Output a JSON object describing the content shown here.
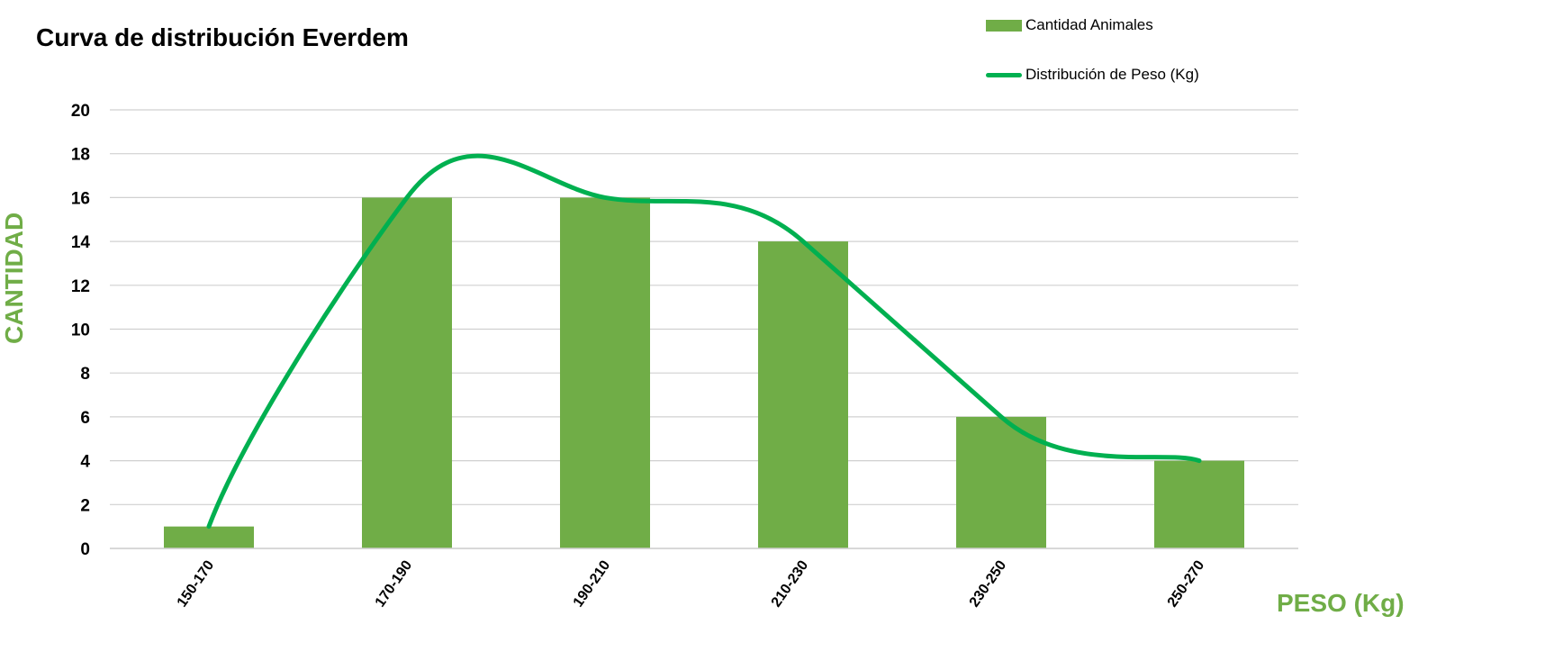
{
  "chart_data": {
    "type": "bar",
    "title": "Curva de distribución Everdem",
    "xlabel": "PESO (Kg)",
    "ylabel": "CANTIDAD",
    "categories": [
      "150-170",
      "170-190",
      "190-210",
      "210-230",
      "230-250",
      "250-270"
    ],
    "series": [
      {
        "name": "Cantidad Animales",
        "type": "bar",
        "values": [
          1,
          16,
          16,
          14,
          6,
          4
        ],
        "color": "#70AD47"
      },
      {
        "name": "Distribución de Peso (Kg)",
        "type": "line",
        "smooth": true,
        "values": [
          1,
          16,
          16,
          14,
          6,
          4
        ],
        "color": "#00B050"
      }
    ],
    "ylim": [
      0,
      20
    ],
    "yticks": [
      "0",
      "2",
      "4",
      "6",
      "8",
      "10",
      "12",
      "14",
      "16",
      "18",
      "20"
    ],
    "grid": true,
    "legend": "top-right",
    "axis_title_color": "#70AD47"
  }
}
